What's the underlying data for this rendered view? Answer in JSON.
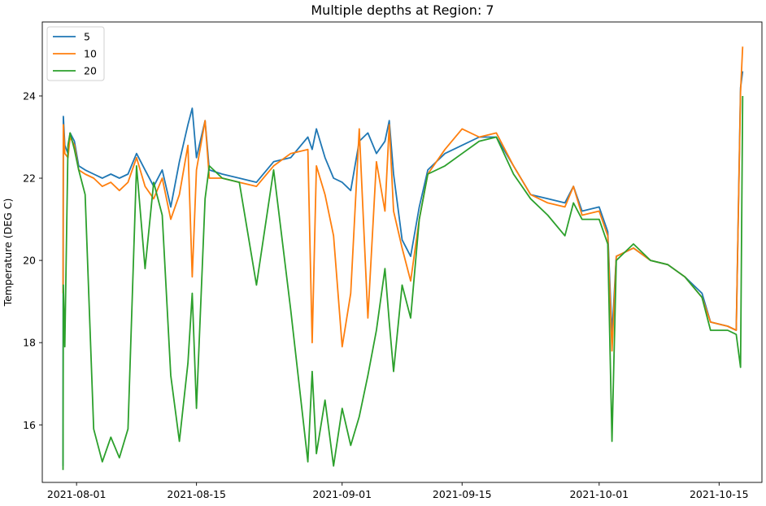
{
  "chart_data": {
    "type": "line",
    "title": "Multiple depths at Region: 7",
    "xlabel": "",
    "ylabel": "Temperature (DEG C)",
    "xlim": [
      "2021-07-28",
      "2021-10-20"
    ],
    "ylim": [
      14.6,
      25.8
    ],
    "x_ticks": [
      "2021-08-01",
      "2021-08-15",
      "2021-09-01",
      "2021-09-15",
      "2021-10-01",
      "2021-10-15"
    ],
    "y_ticks": [
      16,
      18,
      20,
      22,
      24
    ],
    "grid": false,
    "legend_position": "top-left",
    "series": [
      {
        "name": "5",
        "color": "#1f77b4",
        "points": [
          [
            "2021-07-30T10:00",
            15.0
          ],
          [
            "2021-07-30T11:00",
            23.5
          ],
          [
            "2021-07-30T15:00",
            22.8
          ],
          [
            "2021-07-31T00:00",
            22.6
          ],
          [
            "2021-07-31T06:00",
            23.1
          ],
          [
            "2021-07-31T18:00",
            22.9
          ],
          [
            "2021-08-01T06:00",
            22.3
          ],
          [
            "2021-08-02T00:00",
            22.2
          ],
          [
            "2021-08-03T00:00",
            22.1
          ],
          [
            "2021-08-04T00:00",
            22.0
          ],
          [
            "2021-08-05T00:00",
            22.1
          ],
          [
            "2021-08-06T00:00",
            22.0
          ],
          [
            "2021-08-07T00:00",
            22.1
          ],
          [
            "2021-08-08T00:00",
            22.6
          ],
          [
            "2021-08-09T00:00",
            22.2
          ],
          [
            "2021-08-10T00:00",
            21.8
          ],
          [
            "2021-08-11T00:00",
            22.2
          ],
          [
            "2021-08-12T00:00",
            21.3
          ],
          [
            "2021-08-13T00:00",
            22.4
          ],
          [
            "2021-08-14T00:00",
            23.3
          ],
          [
            "2021-08-14T12:00",
            23.7
          ],
          [
            "2021-08-15T00:00",
            22.5
          ],
          [
            "2021-08-16T00:00",
            23.4
          ],
          [
            "2021-08-16T12:00",
            22.2
          ],
          [
            "2021-08-18T00:00",
            22.1
          ],
          [
            "2021-08-20T00:00",
            22.0
          ],
          [
            "2021-08-22T00:00",
            21.9
          ],
          [
            "2021-08-24T00:00",
            22.4
          ],
          [
            "2021-08-26T00:00",
            22.5
          ],
          [
            "2021-08-28T00:00",
            23.0
          ],
          [
            "2021-08-28T12:00",
            22.7
          ],
          [
            "2021-08-29T00:00",
            23.2
          ],
          [
            "2021-08-30T00:00",
            22.5
          ],
          [
            "2021-08-31T00:00",
            22.0
          ],
          [
            "2021-09-01T00:00",
            21.9
          ],
          [
            "2021-09-02T00:00",
            21.7
          ],
          [
            "2021-09-03T00:00",
            22.9
          ],
          [
            "2021-09-04T00:00",
            23.1
          ],
          [
            "2021-09-05T00:00",
            22.6
          ],
          [
            "2021-09-06T00:00",
            22.9
          ],
          [
            "2021-09-06T12:00",
            23.4
          ],
          [
            "2021-09-07T00:00",
            22.1
          ],
          [
            "2021-09-08T00:00",
            20.5
          ],
          [
            "2021-09-09T00:00",
            20.1
          ],
          [
            "2021-09-10T00:00",
            21.3
          ],
          [
            "2021-09-11T00:00",
            22.2
          ],
          [
            "2021-09-13T00:00",
            22.6
          ],
          [
            "2021-09-15T00:00",
            22.8
          ],
          [
            "2021-09-17T00:00",
            23.0
          ],
          [
            "2021-09-19T00:00",
            23.0
          ],
          [
            "2021-09-21T00:00",
            22.3
          ],
          [
            "2021-09-23T00:00",
            21.6
          ],
          [
            "2021-09-25T00:00",
            21.5
          ],
          [
            "2021-09-27T00:00",
            21.4
          ],
          [
            "2021-09-28T00:00",
            21.8
          ],
          [
            "2021-09-29T00:00",
            21.2
          ],
          [
            "2021-10-01T00:00",
            21.3
          ],
          [
            "2021-10-02T00:00",
            20.7
          ],
          [
            "2021-10-02T12:00",
            18.2
          ],
          [
            "2021-10-03T00:00",
            20.1
          ],
          [
            "2021-10-05T00:00",
            20.3
          ],
          [
            "2021-10-07T00:00",
            20.0
          ],
          [
            "2021-10-09T00:00",
            19.9
          ],
          [
            "2021-10-11T00:00",
            19.6
          ],
          [
            "2021-10-13T00:00",
            19.2
          ],
          [
            "2021-10-14T00:00",
            18.5
          ],
          [
            "2021-10-16T00:00",
            18.4
          ],
          [
            "2021-10-17T00:00",
            18.3
          ],
          [
            "2021-10-17T12:00",
            24.2
          ],
          [
            "2021-10-17T18:00",
            24.6
          ]
        ]
      },
      {
        "name": "10",
        "color": "#ff7f0e",
        "points": [
          [
            "2021-07-30T10:00",
            19.2
          ],
          [
            "2021-07-30T11:00",
            23.3
          ],
          [
            "2021-07-30T15:00",
            22.6
          ],
          [
            "2021-07-31T00:00",
            22.5
          ],
          [
            "2021-07-31T06:00",
            23.0
          ],
          [
            "2021-07-31T18:00",
            22.8
          ],
          [
            "2021-08-01T06:00",
            22.2
          ],
          [
            "2021-08-02T00:00",
            22.1
          ],
          [
            "2021-08-03T00:00",
            22.0
          ],
          [
            "2021-08-04T00:00",
            21.8
          ],
          [
            "2021-08-05T00:00",
            21.9
          ],
          [
            "2021-08-06T00:00",
            21.7
          ],
          [
            "2021-08-07T00:00",
            21.9
          ],
          [
            "2021-08-08T00:00",
            22.5
          ],
          [
            "2021-08-09T00:00",
            21.8
          ],
          [
            "2021-08-10T00:00",
            21.5
          ],
          [
            "2021-08-11T00:00",
            22.0
          ],
          [
            "2021-08-12T00:00",
            21.0
          ],
          [
            "2021-08-13T00:00",
            21.6
          ],
          [
            "2021-08-14T00:00",
            22.8
          ],
          [
            "2021-08-14T12:00",
            19.6
          ],
          [
            "2021-08-15T00:00",
            22.2
          ],
          [
            "2021-08-16T00:00",
            23.4
          ],
          [
            "2021-08-16T12:00",
            22.0
          ],
          [
            "2021-08-18T00:00",
            22.0
          ],
          [
            "2021-08-20T00:00",
            21.9
          ],
          [
            "2021-08-22T00:00",
            21.8
          ],
          [
            "2021-08-24T00:00",
            22.3
          ],
          [
            "2021-08-26T00:00",
            22.6
          ],
          [
            "2021-08-28T00:00",
            22.7
          ],
          [
            "2021-08-28T12:00",
            18.0
          ],
          [
            "2021-08-29T00:00",
            22.3
          ],
          [
            "2021-08-30T00:00",
            21.6
          ],
          [
            "2021-08-31T00:00",
            20.6
          ],
          [
            "2021-09-01T00:00",
            17.9
          ],
          [
            "2021-09-02T00:00",
            19.2
          ],
          [
            "2021-09-03T00:00",
            23.2
          ],
          [
            "2021-09-04T00:00",
            18.6
          ],
          [
            "2021-09-05T00:00",
            22.4
          ],
          [
            "2021-09-06T00:00",
            21.2
          ],
          [
            "2021-09-06T12:00",
            23.3
          ],
          [
            "2021-09-07T00:00",
            21.2
          ],
          [
            "2021-09-08T00:00",
            20.3
          ],
          [
            "2021-09-09T00:00",
            19.5
          ],
          [
            "2021-09-10T00:00",
            21.0
          ],
          [
            "2021-09-11T00:00",
            22.1
          ],
          [
            "2021-09-13T00:00",
            22.7
          ],
          [
            "2021-09-15T00:00",
            23.2
          ],
          [
            "2021-09-17T00:00",
            23.0
          ],
          [
            "2021-09-19T00:00",
            23.1
          ],
          [
            "2021-09-21T00:00",
            22.3
          ],
          [
            "2021-09-23T00:00",
            21.6
          ],
          [
            "2021-09-25T00:00",
            21.4
          ],
          [
            "2021-09-27T00:00",
            21.3
          ],
          [
            "2021-09-28T00:00",
            21.8
          ],
          [
            "2021-09-29T00:00",
            21.1
          ],
          [
            "2021-10-01T00:00",
            21.2
          ],
          [
            "2021-10-02T00:00",
            20.6
          ],
          [
            "2021-10-02T12:00",
            17.8
          ],
          [
            "2021-10-03T00:00",
            20.1
          ],
          [
            "2021-10-05T00:00",
            20.3
          ],
          [
            "2021-10-07T00:00",
            20.0
          ],
          [
            "2021-10-09T00:00",
            19.9
          ],
          [
            "2021-10-11T00:00",
            19.6
          ],
          [
            "2021-10-13T00:00",
            19.1
          ],
          [
            "2021-10-14T00:00",
            18.5
          ],
          [
            "2021-10-16T00:00",
            18.4
          ],
          [
            "2021-10-17T00:00",
            18.3
          ],
          [
            "2021-10-17T12:00",
            24.1
          ],
          [
            "2021-10-17T18:00",
            25.2
          ]
        ]
      },
      {
        "name": "20",
        "color": "#2ca02c",
        "points": [
          [
            "2021-07-30T10:00",
            14.9
          ],
          [
            "2021-07-30T11:00",
            19.4
          ],
          [
            "2021-07-30T15:00",
            17.9
          ],
          [
            "2021-07-31T00:00",
            22.8
          ],
          [
            "2021-07-31T06:00",
            23.1
          ],
          [
            "2021-07-31T18:00",
            22.7
          ],
          [
            "2021-08-01T06:00",
            22.2
          ],
          [
            "2021-08-02T00:00",
            21.6
          ],
          [
            "2021-08-03T00:00",
            15.9
          ],
          [
            "2021-08-04T00:00",
            15.1
          ],
          [
            "2021-08-05T00:00",
            15.7
          ],
          [
            "2021-08-06T00:00",
            15.2
          ],
          [
            "2021-08-07T00:00",
            15.9
          ],
          [
            "2021-08-08T00:00",
            22.3
          ],
          [
            "2021-08-09T00:00",
            19.8
          ],
          [
            "2021-08-10T00:00",
            21.9
          ],
          [
            "2021-08-11T00:00",
            21.1
          ],
          [
            "2021-08-12T00:00",
            17.2
          ],
          [
            "2021-08-13T00:00",
            15.6
          ],
          [
            "2021-08-14T00:00",
            17.5
          ],
          [
            "2021-08-14T12:00",
            19.2
          ],
          [
            "2021-08-15T00:00",
            16.4
          ],
          [
            "2021-08-16T00:00",
            21.5
          ],
          [
            "2021-08-16T12:00",
            22.3
          ],
          [
            "2021-08-18T00:00",
            22.0
          ],
          [
            "2021-08-20T00:00",
            21.9
          ],
          [
            "2021-08-22T00:00",
            19.4
          ],
          [
            "2021-08-24T00:00",
            22.2
          ],
          [
            "2021-08-26T00:00",
            18.8
          ],
          [
            "2021-08-28T00:00",
            15.1
          ],
          [
            "2021-08-28T12:00",
            17.3
          ],
          [
            "2021-08-29T00:00",
            15.3
          ],
          [
            "2021-08-30T00:00",
            16.6
          ],
          [
            "2021-08-31T00:00",
            15.0
          ],
          [
            "2021-09-01T00:00",
            16.4
          ],
          [
            "2021-09-02T00:00",
            15.5
          ],
          [
            "2021-09-03T00:00",
            16.2
          ],
          [
            "2021-09-04T00:00",
            17.2
          ],
          [
            "2021-09-05T00:00",
            18.3
          ],
          [
            "2021-09-06T00:00",
            19.8
          ],
          [
            "2021-09-06T12:00",
            18.5
          ],
          [
            "2021-09-07T00:00",
            17.3
          ],
          [
            "2021-09-08T00:00",
            19.4
          ],
          [
            "2021-09-09T00:00",
            18.6
          ],
          [
            "2021-09-10T00:00",
            21.0
          ],
          [
            "2021-09-11T00:00",
            22.1
          ],
          [
            "2021-09-13T00:00",
            22.3
          ],
          [
            "2021-09-15T00:00",
            22.6
          ],
          [
            "2021-09-17T00:00",
            22.9
          ],
          [
            "2021-09-19T00:00",
            23.0
          ],
          [
            "2021-09-21T00:00",
            22.1
          ],
          [
            "2021-09-23T00:00",
            21.5
          ],
          [
            "2021-09-25T00:00",
            21.1
          ],
          [
            "2021-09-27T00:00",
            20.6
          ],
          [
            "2021-09-28T00:00",
            21.4
          ],
          [
            "2021-09-29T00:00",
            21.0
          ],
          [
            "2021-10-01T00:00",
            21.0
          ],
          [
            "2021-10-02T00:00",
            20.4
          ],
          [
            "2021-10-02T12:00",
            15.6
          ],
          [
            "2021-10-03T00:00",
            20.0
          ],
          [
            "2021-10-05T00:00",
            20.4
          ],
          [
            "2021-10-07T00:00",
            20.0
          ],
          [
            "2021-10-09T00:00",
            19.9
          ],
          [
            "2021-10-11T00:00",
            19.6
          ],
          [
            "2021-10-13T00:00",
            19.1
          ],
          [
            "2021-10-14T00:00",
            18.3
          ],
          [
            "2021-10-16T00:00",
            18.3
          ],
          [
            "2021-10-17T00:00",
            18.2
          ],
          [
            "2021-10-17T12:00",
            17.4
          ],
          [
            "2021-10-17T18:00",
            24.0
          ]
        ]
      }
    ]
  }
}
